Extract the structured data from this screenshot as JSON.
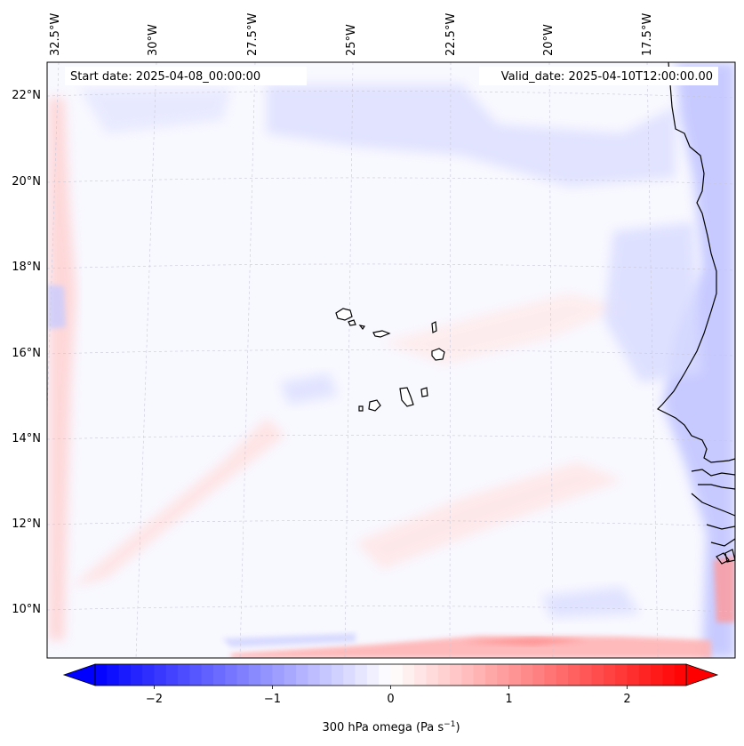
{
  "map": {
    "start_date": "Start date: 2025-04-08_00:00:00",
    "valid_date": "Valid_date: 2025-04-10T12:00:00.00",
    "lon_labels": [
      "32.5°W",
      "30°W",
      "27.5°W",
      "25°W",
      "22.5°W",
      "20°W",
      "17.5°W"
    ],
    "lat_labels": [
      "22°N",
      "20°N",
      "18°N",
      "16°N",
      "14°N",
      "12°N",
      "10°N"
    ],
    "colorbar": {
      "ticks": [
        {
          "value": -2,
          "label": "−2"
        },
        {
          "value": -1,
          "label": "−1"
        },
        {
          "value": 0,
          "label": "0"
        },
        {
          "value": 1,
          "label": "1"
        },
        {
          "value": 2,
          "label": "2"
        }
      ],
      "range": [
        -2.5,
        2.5
      ],
      "label_main": "300 hPa omega (Pa s",
      "label_sup": "−1",
      "label_close": ")",
      "colors": {
        "min": "#0000ff",
        "mid": "#ffffff",
        "max": "#ff0000"
      }
    }
  }
}
